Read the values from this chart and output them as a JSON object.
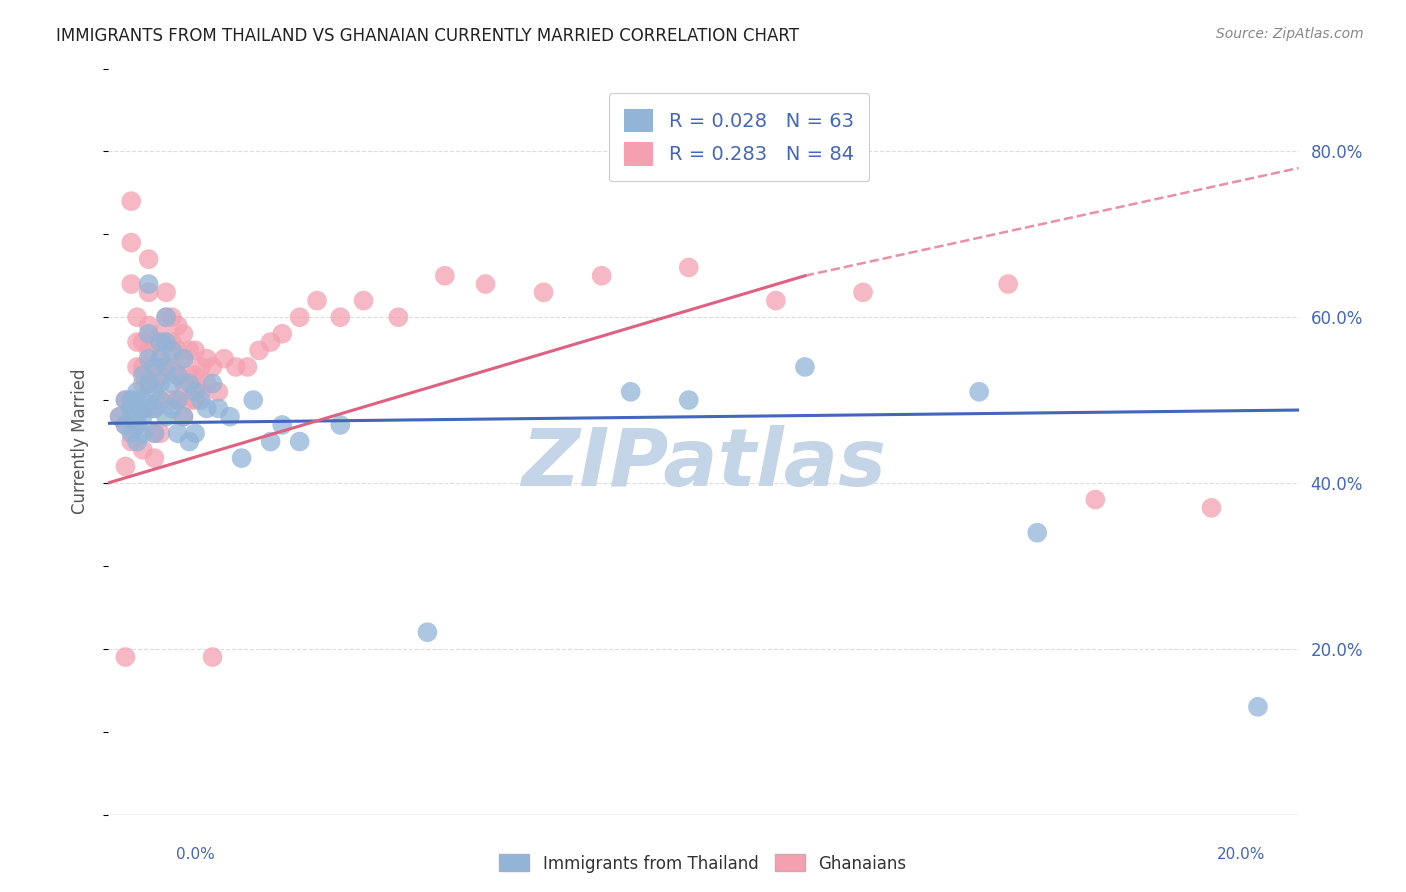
{
  "title": "IMMIGRANTS FROM THAILAND VS GHANAIAN CURRENTLY MARRIED CORRELATION CHART",
  "source": "Source: ZipAtlas.com",
  "ylabel": "Currently Married",
  "right_yticks": [
    "20.0%",
    "40.0%",
    "60.0%",
    "80.0%"
  ],
  "right_ytick_vals": [
    0.2,
    0.4,
    0.6,
    0.8
  ],
  "blue_color": "#92B4D7",
  "pink_color": "#F4A0B0",
  "blue_line_color": "#4466BB",
  "pink_line_color": "#E06080",
  "legend_text_color": "#4466BB",
  "title_color": "#222222",
  "source_color": "#888888",
  "grid_color": "#DDDDDD",
  "watermark_color": "#C5D5E8",
  "xmin": 0.0,
  "xmax": 0.205,
  "ymin": 0.0,
  "ymax": 0.9,
  "blue_scatter_x": [
    0.002,
    0.003,
    0.003,
    0.004,
    0.004,
    0.004,
    0.004,
    0.005,
    0.005,
    0.005,
    0.005,
    0.005,
    0.006,
    0.006,
    0.006,
    0.006,
    0.007,
    0.007,
    0.007,
    0.007,
    0.007,
    0.008,
    0.008,
    0.008,
    0.008,
    0.009,
    0.009,
    0.009,
    0.009,
    0.01,
    0.01,
    0.01,
    0.01,
    0.011,
    0.011,
    0.011,
    0.012,
    0.012,
    0.012,
    0.013,
    0.013,
    0.014,
    0.014,
    0.015,
    0.015,
    0.016,
    0.017,
    0.018,
    0.019,
    0.021,
    0.023,
    0.025,
    0.028,
    0.03,
    0.033,
    0.04,
    0.055,
    0.09,
    0.1,
    0.12,
    0.15,
    0.16,
    0.198
  ],
  "blue_scatter_y": [
    0.48,
    0.5,
    0.47,
    0.5,
    0.49,
    0.46,
    0.48,
    0.51,
    0.48,
    0.47,
    0.5,
    0.45,
    0.53,
    0.5,
    0.48,
    0.46,
    0.64,
    0.58,
    0.55,
    0.52,
    0.49,
    0.54,
    0.51,
    0.49,
    0.46,
    0.57,
    0.55,
    0.52,
    0.5,
    0.6,
    0.57,
    0.54,
    0.48,
    0.56,
    0.52,
    0.49,
    0.53,
    0.5,
    0.46,
    0.55,
    0.48,
    0.52,
    0.45,
    0.51,
    0.46,
    0.5,
    0.49,
    0.52,
    0.49,
    0.48,
    0.43,
    0.5,
    0.45,
    0.47,
    0.45,
    0.47,
    0.22,
    0.51,
    0.5,
    0.54,
    0.51,
    0.34,
    0.13
  ],
  "pink_scatter_x": [
    0.002,
    0.003,
    0.003,
    0.003,
    0.004,
    0.004,
    0.004,
    0.004,
    0.005,
    0.005,
    0.005,
    0.005,
    0.006,
    0.006,
    0.006,
    0.006,
    0.006,
    0.007,
    0.007,
    0.007,
    0.007,
    0.007,
    0.008,
    0.008,
    0.008,
    0.008,
    0.008,
    0.008,
    0.009,
    0.009,
    0.009,
    0.009,
    0.009,
    0.01,
    0.01,
    0.01,
    0.01,
    0.011,
    0.011,
    0.011,
    0.011,
    0.012,
    0.012,
    0.012,
    0.012,
    0.013,
    0.013,
    0.013,
    0.013,
    0.014,
    0.014,
    0.014,
    0.015,
    0.015,
    0.015,
    0.016,
    0.016,
    0.017,
    0.017,
    0.018,
    0.019,
    0.02,
    0.022,
    0.024,
    0.026,
    0.028,
    0.03,
    0.033,
    0.036,
    0.04,
    0.044,
    0.05,
    0.058,
    0.065,
    0.075,
    0.085,
    0.1,
    0.115,
    0.13,
    0.155,
    0.17,
    0.19,
    0.003,
    0.018
  ],
  "pink_scatter_y": [
    0.48,
    0.5,
    0.47,
    0.42,
    0.74,
    0.69,
    0.64,
    0.45,
    0.6,
    0.57,
    0.54,
    0.47,
    0.57,
    0.54,
    0.52,
    0.49,
    0.44,
    0.67,
    0.63,
    0.59,
    0.56,
    0.52,
    0.57,
    0.54,
    0.52,
    0.49,
    0.46,
    0.43,
    0.58,
    0.55,
    0.53,
    0.5,
    0.46,
    0.63,
    0.6,
    0.57,
    0.54,
    0.6,
    0.57,
    0.54,
    0.5,
    0.59,
    0.56,
    0.53,
    0.5,
    0.58,
    0.55,
    0.52,
    0.48,
    0.56,
    0.53,
    0.5,
    0.56,
    0.53,
    0.5,
    0.54,
    0.51,
    0.55,
    0.52,
    0.54,
    0.51,
    0.55,
    0.54,
    0.54,
    0.56,
    0.57,
    0.58,
    0.6,
    0.62,
    0.6,
    0.62,
    0.6,
    0.65,
    0.64,
    0.63,
    0.65,
    0.66,
    0.62,
    0.63,
    0.64,
    0.38,
    0.37,
    0.19,
    0.19
  ],
  "blue_trend": [
    0.0,
    0.205,
    0.472,
    0.488
  ],
  "pink_trend_solid": [
    0.0,
    0.12,
    0.4,
    0.65
  ],
  "pink_trend_dash": [
    0.12,
    0.205,
    0.65,
    0.78
  ]
}
